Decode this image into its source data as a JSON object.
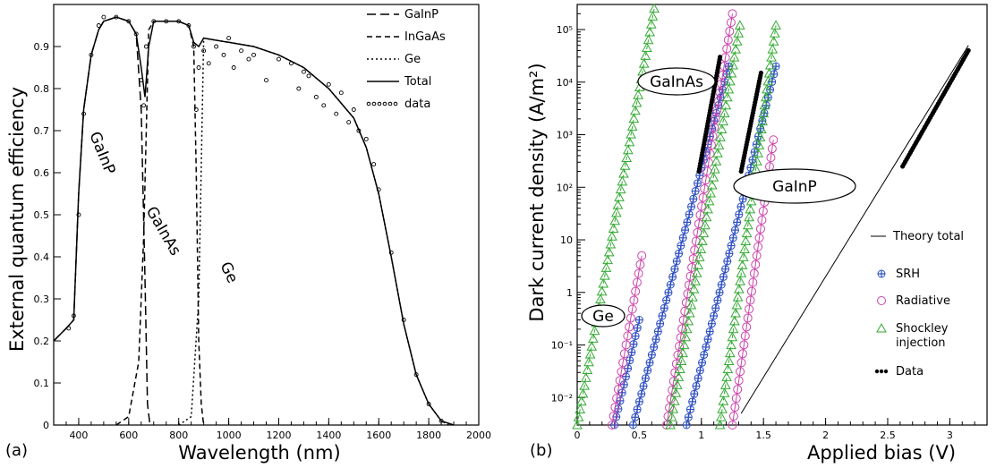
{
  "chart_data": [
    {
      "panel_label": "(a)",
      "type": "line",
      "xlabel": "Wavelength (nm)",
      "ylabel": "External quantum efficiency",
      "xlim": [
        300,
        2000
      ],
      "ylim": [
        0,
        1.0
      ],
      "xticks": [
        400,
        600,
        800,
        1000,
        1200,
        1400,
        1600,
        1800,
        2000
      ],
      "yticks": [
        0,
        0.1,
        0.2,
        0.3,
        0.4,
        0.5,
        0.6,
        0.7,
        0.8,
        0.9
      ],
      "legend": {
        "placement": "top-right",
        "entries": [
          "GaInP",
          "InGaAs",
          "Ge",
          "Total",
          "data"
        ]
      },
      "annotations": [
        "GaInP",
        "GaInAs",
        "Ge"
      ],
      "series": [
        {
          "name": "GaInP",
          "style": "long-dash",
          "x": [
            300,
            350,
            380,
            400,
            420,
            450,
            480,
            500,
            550,
            600,
            630,
            650,
            665,
            675,
            685
          ],
          "y": [
            0.2,
            0.23,
            0.25,
            0.55,
            0.75,
            0.88,
            0.94,
            0.96,
            0.97,
            0.96,
            0.93,
            0.75,
            0.35,
            0.05,
            0
          ]
        },
        {
          "name": "InGaAs",
          "style": "dash",
          "x": [
            550,
            600,
            640,
            660,
            680,
            700,
            750,
            800,
            840,
            860,
            870,
            880,
            890,
            900
          ],
          "y": [
            0,
            0.02,
            0.15,
            0.45,
            0.94,
            0.96,
            0.96,
            0.96,
            0.95,
            0.9,
            0.6,
            0.2,
            0.05,
            0
          ]
        },
        {
          "name": "Ge",
          "style": "dot",
          "x": [
            800,
            850,
            880,
            900,
            1000,
            1100,
            1200,
            1300,
            1400,
            1500,
            1550,
            1600,
            1650,
            1700,
            1750,
            1800,
            1850,
            1880
          ],
          "y": [
            0,
            0.02,
            0.3,
            0.92,
            0.91,
            0.9,
            0.88,
            0.85,
            0.8,
            0.73,
            0.66,
            0.55,
            0.4,
            0.24,
            0.12,
            0.05,
            0.01,
            0
          ]
        },
        {
          "name": "Total",
          "style": "solid",
          "x": [
            300,
            350,
            380,
            400,
            420,
            450,
            480,
            500,
            550,
            600,
            630,
            650,
            665,
            680,
            700,
            750,
            800,
            840,
            860,
            880,
            900,
            1000,
            1100,
            1200,
            1300,
            1400,
            1500,
            1550,
            1600,
            1650,
            1700,
            1750,
            1800,
            1850,
            1900
          ],
          "y": [
            0.2,
            0.23,
            0.25,
            0.55,
            0.75,
            0.88,
            0.94,
            0.96,
            0.97,
            0.96,
            0.93,
            0.85,
            0.78,
            0.9,
            0.96,
            0.96,
            0.96,
            0.95,
            0.91,
            0.9,
            0.92,
            0.91,
            0.9,
            0.88,
            0.85,
            0.8,
            0.73,
            0.66,
            0.55,
            0.4,
            0.24,
            0.12,
            0.05,
            0.01,
            0
          ]
        },
        {
          "name": "data",
          "style": "points",
          "x": [
            360,
            380,
            400,
            420,
            450,
            480,
            500,
            550,
            600,
            630,
            650,
            660,
            670,
            700,
            750,
            800,
            840,
            860,
            870,
            880,
            900,
            920,
            950,
            980,
            1000,
            1020,
            1050,
            1080,
            1100,
            1150,
            1200,
            1250,
            1280,
            1300,
            1320,
            1350,
            1380,
            1400,
            1430,
            1450,
            1480,
            1500,
            1520,
            1550,
            1580,
            1600,
            1650,
            1700,
            1750,
            1800,
            1850
          ],
          "y": [
            0.23,
            0.26,
            0.5,
            0.74,
            0.88,
            0.95,
            0.97,
            0.97,
            0.96,
            0.93,
            0.82,
            0.76,
            0.9,
            0.96,
            0.96,
            0.96,
            0.95,
            0.9,
            0.75,
            0.85,
            0.89,
            0.86,
            0.9,
            0.88,
            0.92,
            0.85,
            0.89,
            0.87,
            0.88,
            0.82,
            0.87,
            0.86,
            0.8,
            0.84,
            0.83,
            0.78,
            0.76,
            0.81,
            0.74,
            0.79,
            0.72,
            0.75,
            0.7,
            0.68,
            0.62,
            0.56,
            0.41,
            0.25,
            0.12,
            0.05,
            0.01
          ]
        }
      ]
    },
    {
      "panel_label": "(b)",
      "type": "line",
      "scale": {
        "y": "log"
      },
      "xlabel": "Applied bias (V)",
      "ylabel": "Dark current density (A/m²)",
      "xlim": [
        0,
        3.3
      ],
      "ylim": [
        0.003,
        300000
      ],
      "xticks": [
        0,
        0.5,
        1,
        1.5,
        2,
        2.5,
        3
      ],
      "yticks": [
        0.01,
        0.1,
        1,
        10,
        100,
        1000,
        10000,
        100000
      ],
      "ytick_labels": [
        "10⁻²",
        "10⁻¹",
        "1",
        "10",
        "10²",
        "10³",
        "10⁴",
        "10⁵"
      ],
      "legend": {
        "placement": "bottom-right",
        "entries": [
          "Theory total",
          "SRH",
          "Radiative",
          "Shockley injection",
          "Data"
        ]
      },
      "annotations": [
        "GaInAs",
        "GaInP",
        "Ge"
      ],
      "series": [
        {
          "name": "Theory total",
          "style": "solid",
          "x": [
            1.32,
            3.15
          ],
          "y": [
            0.005,
            50000
          ]
        },
        {
          "name": "SRH",
          "marker": "cross",
          "color": "#2e4fc4",
          "x": [
            0.3,
            0.5
          ],
          "y": [
            0.003,
            0.3
          ]
        },
        {
          "name": "SRH",
          "marker": "cross",
          "color": "#2e4fc4",
          "x": [
            0.45,
            1.22
          ],
          "y": [
            0.003,
            20000
          ]
        },
        {
          "name": "SRH",
          "marker": "cross",
          "color": "#2e4fc4",
          "x": [
            0.88,
            1.6
          ],
          "y": [
            0.003,
            20000
          ]
        },
        {
          "name": "Radiative",
          "marker": "circle",
          "color": "#cc44aa",
          "x": [
            0.28,
            0.52
          ],
          "y": [
            0.003,
            5
          ]
        },
        {
          "name": "Radiative",
          "marker": "circle",
          "color": "#cc44aa",
          "x": [
            0.72,
            1.25
          ],
          "y": [
            0.003,
            200000
          ]
        },
        {
          "name": "Radiative",
          "marker": "circle",
          "color": "#cc44aa",
          "x": [
            1.25,
            1.58
          ],
          "y": [
            0.003,
            800
          ]
        },
        {
          "name": "Shockley injection",
          "marker": "triangle",
          "color": "#33aa33",
          "x": [
            0,
            0.62
          ],
          "y": [
            0.003,
            250000
          ]
        },
        {
          "name": "Shockley injection",
          "marker": "triangle",
          "color": "#33aa33",
          "x": [
            0.75,
            1.31
          ],
          "y": [
            0.003,
            120000
          ]
        },
        {
          "name": "Shockley injection",
          "marker": "triangle",
          "color": "#33aa33",
          "x": [
            1.15,
            1.6
          ],
          "y": [
            0.003,
            120000
          ]
        },
        {
          "name": "Data",
          "marker": "dot",
          "color": "#000000",
          "x": [
            0.98,
            1.15
          ],
          "y": [
            200,
            30000
          ]
        },
        {
          "name": "Data",
          "marker": "dot",
          "color": "#000000",
          "x": [
            1.32,
            1.48
          ],
          "y": [
            200,
            15000
          ]
        },
        {
          "name": "Data",
          "marker": "dot",
          "color": "#000000",
          "x": [
            2.62,
            3.15
          ],
          "y": [
            250,
            40000
          ]
        }
      ]
    }
  ]
}
